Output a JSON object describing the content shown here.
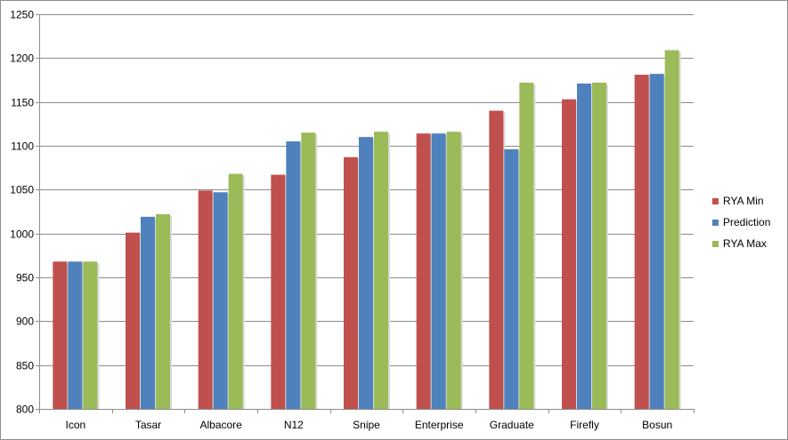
{
  "chart_data": {
    "type": "bar",
    "categories": [
      "Icon",
      "Tasar",
      "Albacore",
      "N12",
      "Snipe",
      "Enterprise",
      "Graduate",
      "Firefly",
      "Bosun"
    ],
    "series": [
      {
        "name": "RYA Min",
        "color": "#c0504d",
        "values": [
          968,
          1001,
          1049,
          1067,
          1087,
          1114,
          1140,
          1153,
          1181
        ]
      },
      {
        "name": "Prediction",
        "color": "#4f81bd",
        "values": [
          968,
          1019,
          1047,
          1105,
          1110,
          1114,
          1096,
          1171,
          1182
        ]
      },
      {
        "name": "RYA Max",
        "color": "#9bbb59",
        "values": [
          968,
          1022,
          1068,
          1115,
          1116,
          1116,
          1172,
          1172,
          1209
        ]
      }
    ],
    "ylim": [
      800,
      1250
    ],
    "yticks": [
      800,
      850,
      900,
      950,
      1000,
      1050,
      1100,
      1150,
      1200,
      1250
    ],
    "grid": true,
    "legend_position": "right"
  }
}
